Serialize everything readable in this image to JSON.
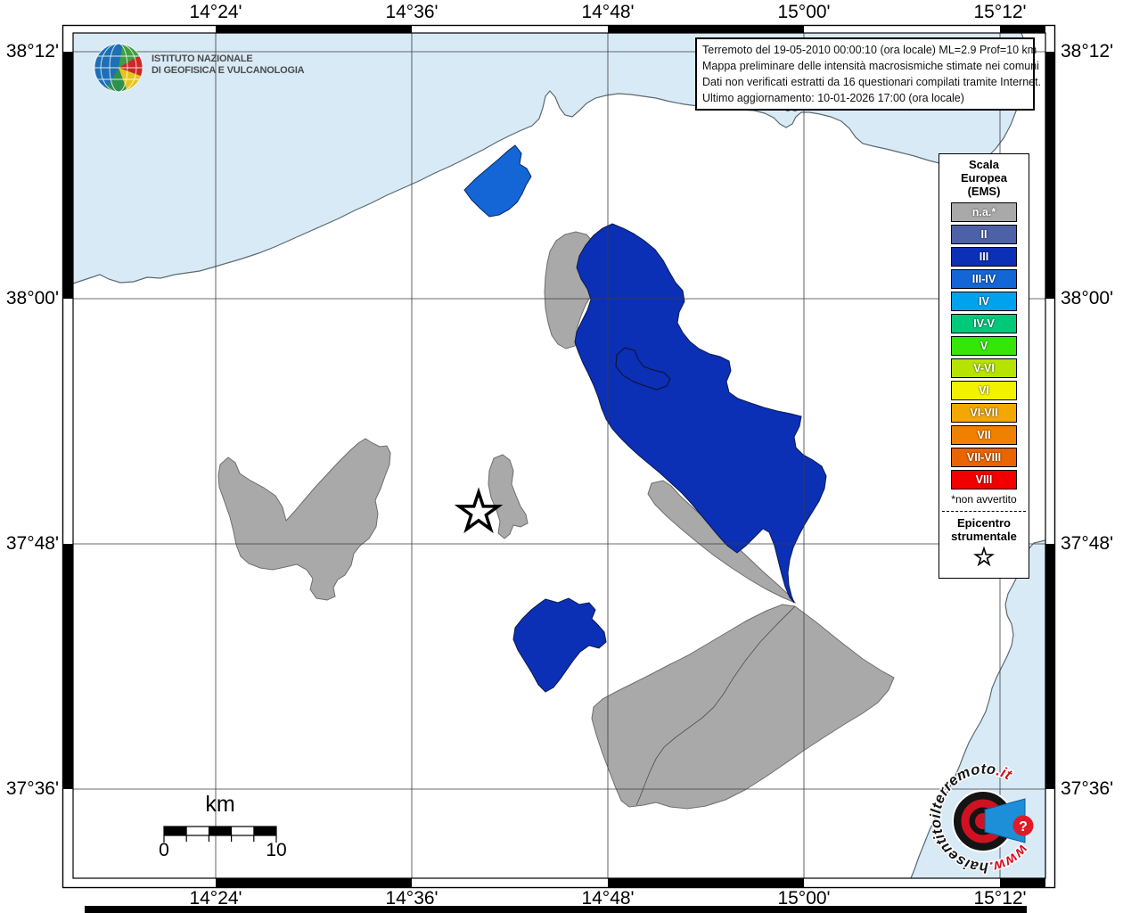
{
  "agency": {
    "name_line1": "ISTITUTO NAZIONALE",
    "name_line2": "DI GEOFISICA E VULCANOLOGIA"
  },
  "info_box": {
    "lines": [
      "Terremoto del 19-05-2010 00:00:10 (ora locale) ML=2.9 Prof=10 km",
      "Mappa preliminare delle intensità macrosismiche stimate nei comuni",
      "Dati non verificati estratti da 16 questionari compilati tramite Internet.",
      "Ultimo aggiornamento: 10-01-2026 17:00 (ora locale)"
    ]
  },
  "axes": {
    "lon": [
      "14°24'",
      "14°36'",
      "14°48'",
      "15°00'",
      "15°12'"
    ],
    "lat": [
      "38°12'",
      "38°00'",
      "37°48'",
      "37°36'"
    ]
  },
  "legend": {
    "title_lines": [
      "Scala",
      "Europea",
      "(EMS)"
    ],
    "items": [
      {
        "label": "n.a.*",
        "color": "#a9a9a9"
      },
      {
        "label": "II",
        "color": "#4d61a8"
      },
      {
        "label": "III",
        "color": "#0b2fb5"
      },
      {
        "label": "III-IV",
        "color": "#1465d6"
      },
      {
        "label": "IV",
        "color": "#00a2ee"
      },
      {
        "label": "IV-V",
        "color": "#00c97c"
      },
      {
        "label": "V",
        "color": "#35e607"
      },
      {
        "label": "V-VI",
        "color": "#b6e400"
      },
      {
        "label": "VI",
        "color": "#f2f200"
      },
      {
        "label": "VI-VII",
        "color": "#f2a800"
      },
      {
        "label": "VII",
        "color": "#f08000"
      },
      {
        "label": "VII-VIII",
        "color": "#ea6400"
      },
      {
        "label": "VIII",
        "color": "#f20000"
      }
    ],
    "footnote": "*non avvertito",
    "epicenter_line1": "Epicentro",
    "epicenter_line2": "strumentale"
  },
  "scale_bar": {
    "unit": "km",
    "start_label": "0",
    "end_label": "10"
  },
  "watermark": {
    "www": "www.",
    "hais": "haisentito",
    "il": "il",
    "terremoto": "terremoto",
    "it": ".it",
    "question_mark": "?"
  },
  "colors": {
    "sea": "#d8eaf6",
    "na_gray": "#a9a9a9",
    "intensity_iii": "#0b2fb5",
    "intensity_iii_iv": "#1465d6"
  }
}
